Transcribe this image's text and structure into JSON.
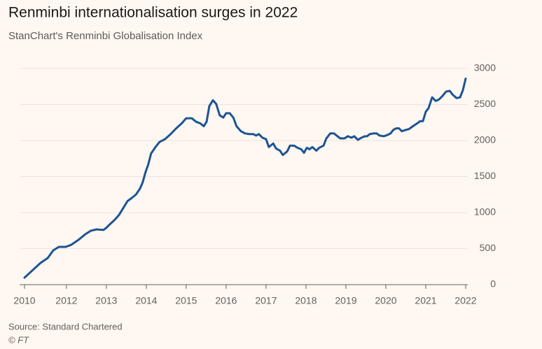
{
  "chart_data": {
    "type": "line",
    "title": "Renminbi internationalisation surges in 2022",
    "subtitle": "StanChart's Renminbi Globalisation Index",
    "source": "Source: Standard Chartered",
    "credit": "© FT",
    "color": "#1c5494",
    "grid": true,
    "xlim": [
      2010.95,
      2022
    ],
    "ylim": [
      0,
      3000
    ],
    "yticks": [
      0,
      500,
      1000,
      1500,
      2000,
      2500,
      3000
    ],
    "xticks": [
      {
        "value": 2010.95,
        "label": "2010"
      },
      2012,
      2013,
      2014,
      2015,
      2016,
      2017,
      2018,
      2019,
      2020,
      2021,
      2022
    ],
    "x": [
      2010.95,
      2011.12,
      2011.35,
      2011.53,
      2011.67,
      2011.81,
      2011.98,
      2012.12,
      2012.3,
      2012.47,
      2012.61,
      2012.75,
      2012.93,
      2013.0,
      2013.11,
      2013.21,
      2013.32,
      2013.42,
      2013.53,
      2013.63,
      2013.74,
      2013.84,
      2013.91,
      2013.98,
      2014.05,
      2014.12,
      2014.23,
      2014.33,
      2014.47,
      2014.61,
      2014.75,
      2014.89,
      2015.0,
      2015.14,
      2015.25,
      2015.35,
      2015.44,
      2015.51,
      2015.58,
      2015.67,
      2015.75,
      2015.84,
      2015.93,
      2016.0,
      2016.09,
      2016.18,
      2016.26,
      2016.37,
      2016.47,
      2016.58,
      2016.68,
      2016.75,
      2016.82,
      2016.91,
      2017.0,
      2017.07,
      2017.18,
      2017.25,
      2017.35,
      2017.42,
      2017.53,
      2017.6,
      2017.7,
      2017.79,
      2017.88,
      2017.95,
      2018.02,
      2018.09,
      2018.16,
      2018.26,
      2018.33,
      2018.44,
      2018.51,
      2018.61,
      2018.7,
      2018.79,
      2018.86,
      2018.96,
      2019.05,
      2019.14,
      2019.21,
      2019.3,
      2019.39,
      2019.47,
      2019.53,
      2019.6,
      2019.7,
      2019.77,
      2019.84,
      2019.95,
      2020.05,
      2020.12,
      2020.19,
      2020.26,
      2020.33,
      2020.4,
      2020.51,
      2020.58,
      2020.68,
      2020.79,
      2020.86,
      2020.93,
      2021.0,
      2021.07,
      2021.16,
      2021.25,
      2021.33,
      2021.42,
      2021.51,
      2021.6,
      2021.67,
      2021.77,
      2021.86,
      2021.93,
      2022.0
    ],
    "values": [
      97,
      184,
      301,
      369,
      476,
      524,
      524,
      553,
      621,
      699,
      748,
      767,
      760,
      790,
      850,
      900,
      970,
      1060,
      1160,
      1200,
      1250,
      1330,
      1420,
      1560,
      1670,
      1820,
      1910,
      1980,
      2020,
      2090,
      2170,
      2240,
      2310,
      2310,
      2260,
      2240,
      2200,
      2260,
      2480,
      2560,
      2510,
      2350,
      2320,
      2380,
      2380,
      2320,
      2200,
      2130,
      2100,
      2090,
      2090,
      2070,
      2090,
      2040,
      2020,
      1910,
      1960,
      1890,
      1860,
      1800,
      1850,
      1930,
      1930,
      1900,
      1880,
      1830,
      1900,
      1880,
      1910,
      1860,
      1900,
      1930,
      2030,
      2100,
      2100,
      2060,
      2030,
      2030,
      2060,
      2040,
      2060,
      2010,
      2040,
      2060,
      2060,
      2090,
      2100,
      2100,
      2070,
      2060,
      2080,
      2100,
      2150,
      2170,
      2170,
      2130,
      2150,
      2160,
      2200,
      2240,
      2270,
      2270,
      2400,
      2450,
      2600,
      2550,
      2570,
      2620,
      2680,
      2690,
      2640,
      2590,
      2600,
      2700,
      2860
    ]
  }
}
